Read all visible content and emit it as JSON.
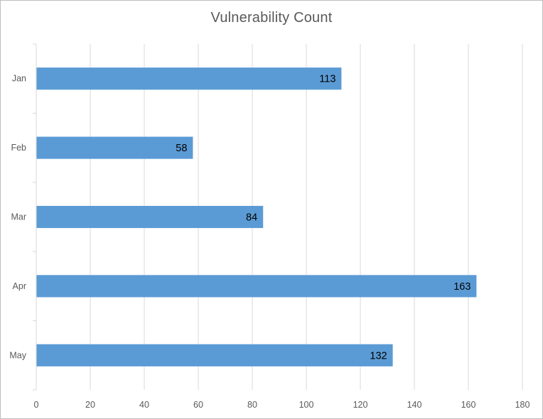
{
  "chart_data": {
    "type": "bar",
    "orientation": "horizontal",
    "title": "Vulnerability Count",
    "categories": [
      "Jan",
      "Feb",
      "Mar",
      "Apr",
      "May"
    ],
    "values": [
      113,
      58,
      84,
      163,
      132
    ],
    "xlim": [
      0,
      180
    ],
    "x_ticks": [
      0,
      20,
      40,
      60,
      80,
      100,
      120,
      140,
      160,
      180
    ],
    "xlabel": "",
    "ylabel": "",
    "grid": "vertical gridlines",
    "legend": "none",
    "data_labels": "inside end",
    "bar_color": "#5b9bd5",
    "grid_color": "#d9d9d9"
  }
}
